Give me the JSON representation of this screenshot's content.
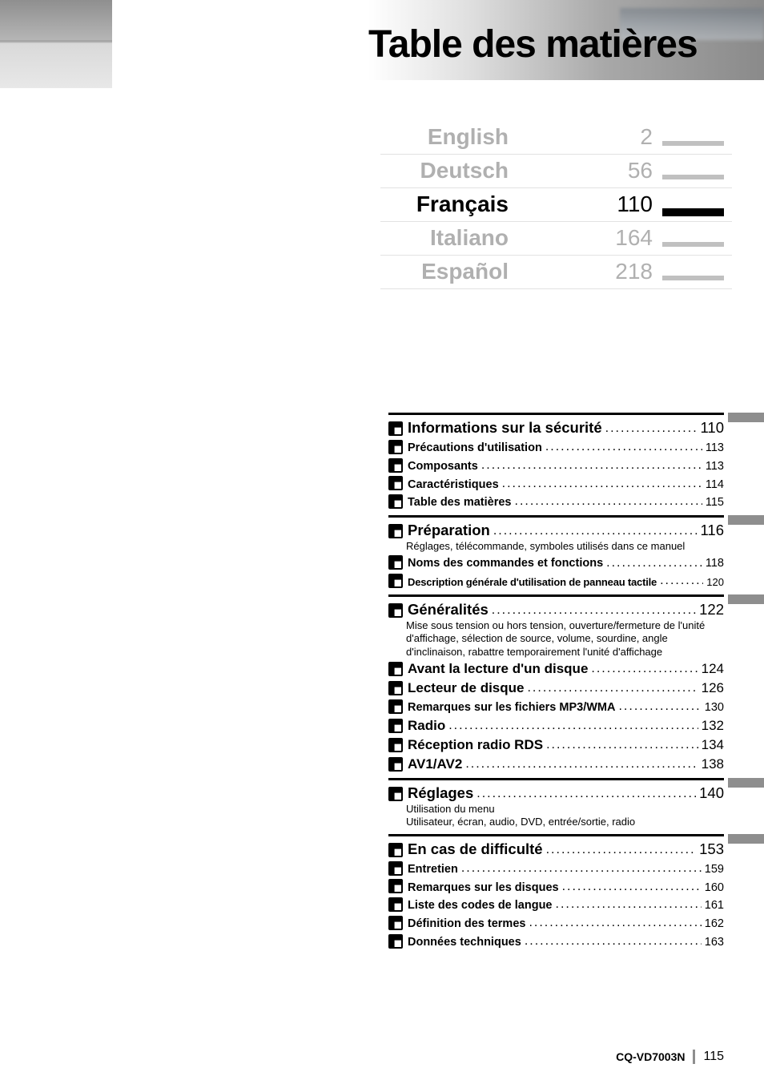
{
  "colors": {
    "text": "#000000",
    "inactive": "#b0b0b0",
    "rule": "#000000",
    "tab_gray": "#8e8e8e",
    "background": "#ffffff",
    "corner_dark": "#8f8f8f",
    "corner_light": "#e8e8e8"
  },
  "typography": {
    "title_fontsize_pt": 36,
    "lang_fontsize_pt": 21,
    "major_fontsize_pt": 14,
    "medium_fontsize_pt": 12.5,
    "sub_fontsize_pt": 11,
    "desc_fontsize_pt": 9.5,
    "font_family": "Arial-like / Helvetica condensed bold for title"
  },
  "title": "Table des matières",
  "languages": [
    {
      "name": "English",
      "page": "2",
      "active": false
    },
    {
      "name": "Deutsch",
      "page": "56",
      "active": false
    },
    {
      "name": "Français",
      "page": "110",
      "active": true
    },
    {
      "name": "Italiano",
      "page": "164",
      "active": false
    },
    {
      "name": "Español",
      "page": "218",
      "active": false
    }
  ],
  "toc": {
    "sections": [
      {
        "entries": [
          {
            "style": "major",
            "label": "Informations sur la sécurité",
            "page": "110"
          },
          {
            "style": "sub",
            "label": "Précautions d'utilisation",
            "page": "113"
          },
          {
            "style": "sub",
            "label": "Composants",
            "page": "113"
          },
          {
            "style": "sub",
            "label": "Caractéristiques",
            "page": "114"
          },
          {
            "style": "sub",
            "label": "Table des matières",
            "page": "115"
          }
        ]
      },
      {
        "entries": [
          {
            "style": "major",
            "label": "Préparation",
            "page": "116",
            "desc": "Réglages, télécommande, symboles utilisés dans ce manuel"
          },
          {
            "style": "sub",
            "label": "Noms des commandes et fonctions",
            "page": "118"
          },
          {
            "style": "cond",
            "label": "Description générale d'utilisation de panneau tactile",
            "page": "120"
          }
        ]
      },
      {
        "entries": [
          {
            "style": "major",
            "label": "Généralités",
            "page": "122",
            "desc": "Mise sous tension ou hors tension, ouverture/fermeture de l'unité d'affichage, sélection de source, volume, sourdine, angle d'inclinaison, rabattre temporairement l'unité d'affichage"
          },
          {
            "style": "medium",
            "label": "Avant la lecture d'un disque",
            "page": "124"
          },
          {
            "style": "medium",
            "label": "Lecteur de disque",
            "page": "126"
          },
          {
            "style": "sub",
            "label": "Remarques sur les fichiers MP3/WMA",
            "page": "130"
          },
          {
            "style": "medium",
            "label": "Radio",
            "page": "132"
          },
          {
            "style": "medium",
            "label": "Réception radio RDS",
            "page": "134"
          },
          {
            "style": "medium",
            "label": "AV1/AV2",
            "page": "138"
          }
        ]
      },
      {
        "entries": [
          {
            "style": "major",
            "label": "Réglages",
            "page": "140",
            "desc": "Utilisation du menu\nUtilisateur, écran, audio, DVD, entrée/sortie, radio"
          }
        ]
      },
      {
        "entries": [
          {
            "style": "major",
            "label": "En cas de difficulté",
            "page": "153"
          },
          {
            "style": "sub",
            "label": "Entretien",
            "page": "159"
          },
          {
            "style": "sub",
            "label": "Remarques sur les disques",
            "page": "160"
          },
          {
            "style": "sub",
            "label": "Liste des codes de langue",
            "page": "161"
          },
          {
            "style": "sub",
            "label": "Définition des termes",
            "page": "162"
          },
          {
            "style": "sub",
            "label": "Données techniques",
            "page": "163"
          }
        ]
      }
    ]
  },
  "footer": {
    "model": "CQ-VD7003N",
    "page_number": "115"
  }
}
